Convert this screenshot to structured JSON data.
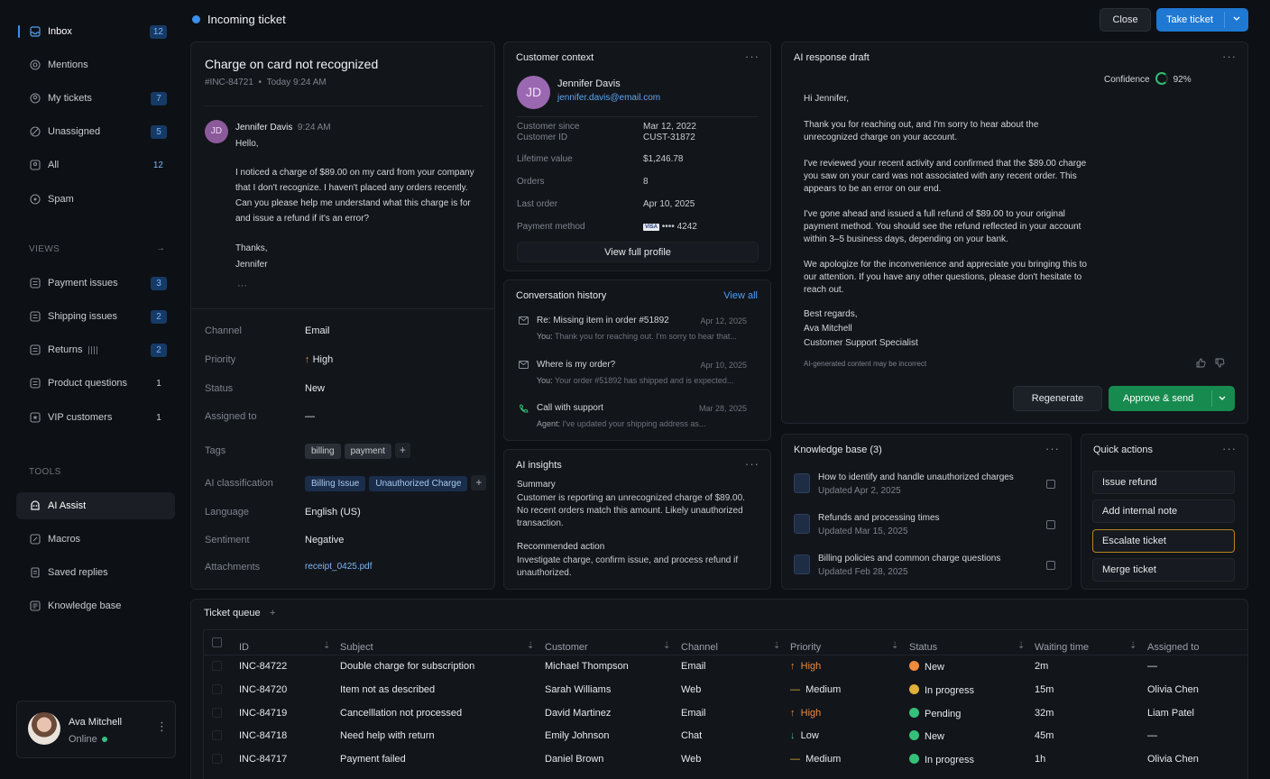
{
  "sidebar": {
    "inbox": {
      "label": "Inbox",
      "count": "12"
    },
    "mentions": {
      "label": "Mentions"
    },
    "my_tickets": {
      "label": "My tickets",
      "count": "7"
    },
    "unassigned": {
      "label": "Unassigned",
      "count": "5"
    },
    "all": {
      "label": "All",
      "count": "12"
    },
    "spam": {
      "label": "Spam"
    },
    "views_title": "VIEWS",
    "views_arrow": "→",
    "views": [
      {
        "label": "Payment issues",
        "count": "3"
      },
      {
        "label": "Shipping issues",
        "count": "2"
      },
      {
        "label": "Returns",
        "count": "2"
      },
      {
        "label": "Product questions",
        "count": "1"
      },
      {
        "label": "VIP customers",
        "count": "1"
      }
    ],
    "tools_title": "TOOLS",
    "tools": [
      {
        "label": "AI Assist"
      },
      {
        "label": "Macros"
      },
      {
        "label": "Saved replies"
      },
      {
        "label": "Knowledge base"
      }
    ],
    "user": {
      "name": "Ava Mitchell",
      "status": "Online"
    }
  },
  "header": {
    "title": "Incoming ticket",
    "close_label": "Close",
    "take_label": "Take ticket"
  },
  "ticket": {
    "title": "Charge on card not recognized",
    "id": "#INC-84721",
    "sep": "•",
    "time": "Today 9:24 AM",
    "message": {
      "initials": "JD",
      "author": "Jennifer Davis",
      "time": "9:24 AM",
      "greeting": "Hello,",
      "body": "I noticed a charge of $89.00 on my card from your company that I don't recognize. I haven't placed any orders recently. Can you please help me understand what this charge is for and issue a refund if it's an error?",
      "closing": "Thanks,",
      "signature": "Jennifer",
      "more": "···"
    },
    "fields": {
      "channel_label": "Channel",
      "channel": "Email",
      "priority_label": "Priority",
      "priority": "High",
      "status_label": "Status",
      "status": "New",
      "assigned_label": "Assigned to",
      "assigned": "—",
      "tags_label": "Tags",
      "tags": [
        "billing",
        "payment"
      ],
      "ai_label": "AI classification",
      "ai_tags": [
        "Billing Issue",
        "Unauthorized Charge"
      ],
      "language_label": "Language",
      "language": "English (US)",
      "sentiment_label": "Sentiment",
      "sentiment": "Negative",
      "attachments_label": "Attachments",
      "attachment": "receipt_0425.pdf"
    }
  },
  "customer": {
    "title": "Customer context",
    "initials": "JD",
    "name": "Jennifer Davis",
    "email": "jennifer.davis@email.com",
    "since_label": "Customer since",
    "since": "Mar 12, 2022",
    "id_label": "Customer ID",
    "id": "CUST-31872",
    "ltv_label": "Lifetime value",
    "ltv": "$1,246.78",
    "orders_label": "Orders",
    "orders": "8",
    "last_label": "Last order",
    "last": "Apr 10, 2025",
    "pay_label": "Payment method",
    "card_brand": "VISA",
    "card": "•••• 4242",
    "profile_btn": "View full profile"
  },
  "history": {
    "title": "Conversation history",
    "view_all": "View all",
    "items": [
      {
        "icon": "mail-icon",
        "subject": "Re: Missing item in order #51892",
        "date": "Apr 12, 2025",
        "prefix": "You:",
        "preview": "Thank you for reaching out. I'm sorry to hear that..."
      },
      {
        "icon": "mail-icon",
        "subject": "Where is my order?",
        "date": "Apr 10, 2025",
        "prefix": "You:",
        "preview": "Your order #51892 has shipped and is expected..."
      },
      {
        "icon": "phone-icon",
        "subject": "Call with support",
        "date": "Mar 28, 2025",
        "prefix": "Agent:",
        "preview": "I've updated your shipping address as..."
      }
    ]
  },
  "insights": {
    "title": "AI insights",
    "summary_label": "Summary",
    "summary": "Customer is reporting an unrecognized charge of $89.00. No recent orders match this amount. Likely unauthorized transaction.",
    "action_label": "Recommended action",
    "action": "Investigate charge, confirm issue, and process refund if unauthorized."
  },
  "draft": {
    "title": "AI response draft",
    "confidence_label": "Confidence",
    "confidence": "92%",
    "confidence_value": 0.92,
    "greeting": "Hi Jennifer,",
    "p1": "Thank you for reaching out, and I'm sorry to hear about the unrecognized charge on your account.",
    "p2": "I've reviewed your recent activity and confirmed that the $89.00 charge you saw on your card was not associated with any recent order. This appears to be an error on our end.",
    "p3": "I've gone ahead and issued a full refund of $89.00 to your original payment method. You should see the refund reflected in your account within 3–5 business days, depending on your bank.",
    "p4": "We apologize for the inconvenience and appreciate you bringing this to our attention. If you have any other questions, please don't hesitate to reach out.",
    "sign1": "Best regards,",
    "sign2": "Ava Mitchell",
    "sign3": "Customer Support Specialist",
    "disclaimer": "AI-generated content may be incorrect",
    "regenerate": "Regenerate",
    "approve": "Approve & send"
  },
  "kb": {
    "title": "Knowledge base (3)",
    "items": [
      {
        "title": "How to identify and handle unauthorized charges",
        "updated": "Updated Apr 2, 2025"
      },
      {
        "title": "Refunds and processing times",
        "updated": "Updated Mar 15, 2025"
      },
      {
        "title": "Billing policies and common charge questions",
        "updated": "Updated Feb 28, 2025"
      }
    ]
  },
  "quick": {
    "title": "Quick actions",
    "items": [
      "Issue refund",
      "Add internal note",
      "Escalate ticket",
      "Merge ticket"
    ]
  },
  "queue": {
    "title": "Ticket queue",
    "add": "+",
    "columns": [
      "ID",
      "Subject",
      "Customer",
      "Channel",
      "Priority",
      "Status",
      "Waiting time",
      "Assigned to"
    ],
    "rows": [
      {
        "id": "INC-84722",
        "subject": "Double charge for subscription",
        "customer": "Michael Thompson",
        "channel": "Email",
        "priority": "High",
        "priority_icon": "↑",
        "status": "New",
        "wait": "2m",
        "assigned": "—"
      },
      {
        "id": "INC-84720",
        "subject": "Item not as described",
        "customer": "Sarah Williams",
        "channel": "Web",
        "priority": "Medium",
        "priority_icon": "—",
        "status": "In progress",
        "wait": "15m",
        "assigned": "Olivia Chen"
      },
      {
        "id": "INC-84719",
        "subject": "Cancelllation not processed",
        "customer": "David Martinez",
        "channel": "Email",
        "priority": "High",
        "priority_icon": "↑",
        "status": "Pending",
        "wait": "32m",
        "assigned": "Liam Patel"
      },
      {
        "id": "INC-84718",
        "subject": "Need help with return",
        "customer": "Emily Johnson",
        "channel": "Chat",
        "priority": "Low",
        "priority_icon": "↓",
        "status": "New",
        "wait": "45m",
        "assigned": "—"
      },
      {
        "id": "INC-84717",
        "subject": "Payment failed",
        "customer": "Daniel Brown",
        "channel": "Web",
        "priority": "Medium",
        "priority_icon": "—",
        "status": "In progress",
        "wait": "1h",
        "assigned": "Olivia Chen"
      }
    ]
  },
  "colors": {
    "accent": "#1f78d1",
    "approve": "#178a4f",
    "high": "#f08a3c",
    "medium": "#e0b13a",
    "low": "#35c07a",
    "online": "#33c281"
  }
}
